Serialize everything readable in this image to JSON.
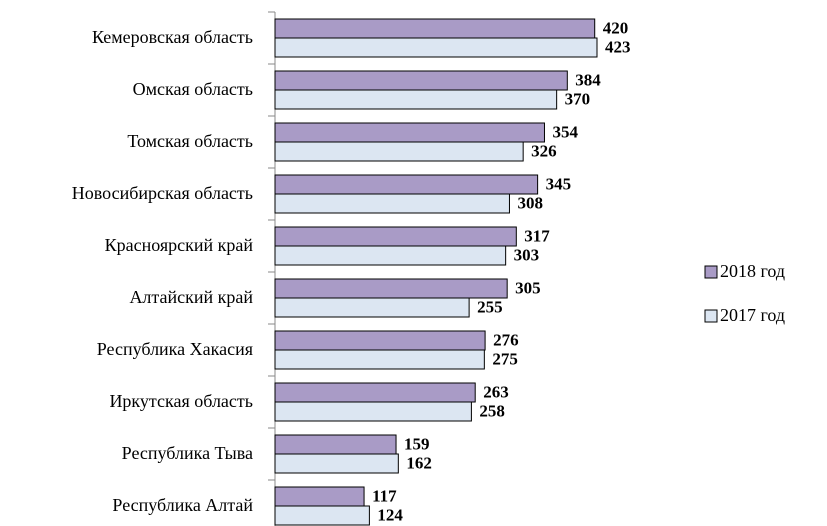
{
  "chart_data": {
    "type": "bar",
    "orientation": "horizontal",
    "categories": [
      "Кемеровская область",
      "Омская область",
      "Томская область",
      "Новосибирская область",
      "Красноярский край",
      "Алтайский край",
      "Республика Хакасия",
      "Иркутская область",
      "Республика Тыва",
      "Республика Алтай"
    ],
    "series": [
      {
        "name": "2018 год",
        "color": "#a99bc6",
        "values": [
          420,
          384,
          354,
          345,
          317,
          305,
          276,
          263,
          159,
          117
        ]
      },
      {
        "name": "2017 год",
        "color": "#dce6f2",
        "values": [
          423,
          370,
          326,
          308,
          303,
          255,
          275,
          258,
          162,
          124
        ]
      }
    ],
    "legend": "right"
  }
}
